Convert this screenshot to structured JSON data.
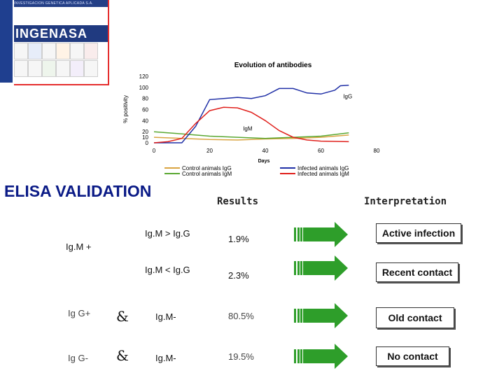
{
  "brand": {
    "strip_text": "INVESTIGACION GENETICA APLICADA S.A.",
    "logo_text": "INGENASA",
    "colors": {
      "bar": "#1f3f8f",
      "accent": "#e52d2d"
    }
  },
  "chart_data": {
    "type": "line",
    "title": "Evolution of antibodies",
    "xlabel": "Days",
    "ylabel": "% positivity",
    "xlim": [
      0,
      80
    ],
    "ylim": [
      0,
      120
    ],
    "x_ticks": [
      0,
      20,
      40,
      60,
      80
    ],
    "y_ticks": [
      0,
      10,
      20,
      40,
      60,
      80,
      100,
      120
    ],
    "grid": false,
    "legend_position": "bottom",
    "annotations": [
      {
        "text": "IgG",
        "near_series": "Infected animals IgG"
      },
      {
        "text": "IgM",
        "near_series": "Infected animals IgM"
      }
    ],
    "series": [
      {
        "name": "Control animals IgG",
        "color": "#d9a441",
        "x": [
          0,
          10,
          20,
          30,
          40,
          50,
          60,
          70
        ],
        "y": [
          10,
          8,
          6,
          5,
          7,
          8,
          10,
          14
        ]
      },
      {
        "name": "Control animals IgM",
        "color": "#5aa832",
        "x": [
          0,
          10,
          20,
          30,
          40,
          50,
          60,
          70
        ],
        "y": [
          20,
          16,
          12,
          10,
          8,
          10,
          12,
          18
        ]
      },
      {
        "name": "Infected animals IgG",
        "color": "#1f2fa6",
        "x": [
          0,
          10,
          15,
          20,
          25,
          30,
          35,
          40,
          45,
          50,
          55,
          60,
          65,
          67,
          70
        ],
        "y": [
          0,
          0,
          30,
          78,
          80,
          82,
          80,
          85,
          98,
          98,
          90,
          88,
          95,
          103,
          104
        ]
      },
      {
        "name": "Infected animals IgM",
        "color": "#e0201c",
        "x": [
          0,
          5,
          10,
          15,
          20,
          25,
          30,
          35,
          40,
          45,
          50,
          55,
          60,
          70
        ],
        "y": [
          0,
          2,
          8,
          35,
          58,
          64,
          63,
          55,
          40,
          22,
          10,
          5,
          3,
          2
        ]
      }
    ]
  },
  "title": "ELISA VALIDATION",
  "headers": {
    "results": "Results",
    "interpretation": "Interpretation"
  },
  "rows": {
    "igm_plus": "Ig.M +",
    "igm_gt": "Ig.M > Ig.G",
    "igm_lt": "Ig.M < Ig.G",
    "igg_plus": "Ig G+",
    "igg_minus": "Ig G-",
    "amp": "&",
    "igm_minus": "Ig.M-",
    "pct": [
      "1.9%",
      "2.3%",
      "80.5%",
      "19.5%"
    ],
    "interp": [
      "Active infection",
      "Recent contact",
      "Old contact",
      "No contact"
    ]
  },
  "arrow_color": "#2e9e2a"
}
